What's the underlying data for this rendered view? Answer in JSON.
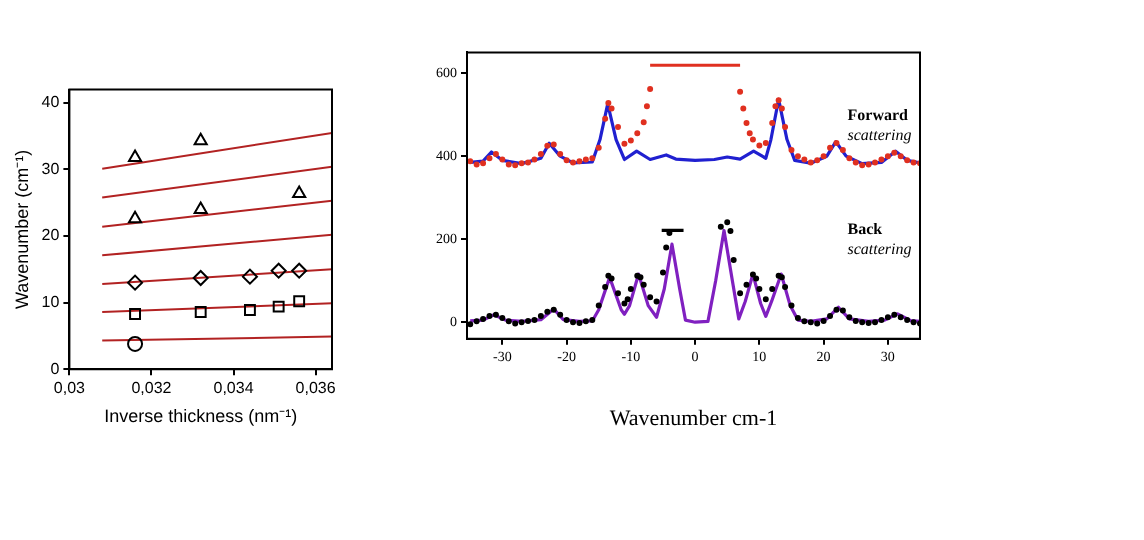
{
  "chart_data": [
    {
      "type": "scatter",
      "xlabel": "Inverse thickness (nm⁻¹)",
      "ylabel": "Wavenumber (cm⁻¹)",
      "xlim": [
        0.03,
        0.0364
      ],
      "xticks": [
        {
          "value": 0.03,
          "label": "0,03"
        },
        {
          "value": 0.032,
          "label": "0,032"
        },
        {
          "value": 0.034,
          "label": "0,034"
        },
        {
          "value": 0.036,
          "label": "0,036"
        }
      ],
      "ylim": [
        0,
        42
      ],
      "yticks": [
        0,
        10,
        20,
        30,
        40
      ],
      "series": [
        {
          "color": "#000000",
          "marker": "circle",
          "x": [
            0.0316
          ],
          "values": [
            3.8
          ]
        },
        {
          "color": "#000000",
          "marker": "square",
          "x": [
            0.0316,
            0.0332,
            0.0344,
            0.0351,
            0.0356
          ],
          "values": [
            8.3,
            8.6,
            8.9,
            9.4,
            10.2
          ]
        },
        {
          "color": "#000000",
          "marker": "diamond",
          "x": [
            0.0316,
            0.0332,
            0.0344,
            0.0351,
            0.0356
          ],
          "values": [
            13.0,
            13.7,
            13.9,
            14.8,
            14.8
          ]
        },
        {
          "color": "#000000",
          "marker": "triangle",
          "x": [
            0.0316,
            0.0332,
            0.0356
          ],
          "values": [
            22.6,
            24.0,
            26.4
          ]
        },
        {
          "color": "#000000",
          "marker": "triangle",
          "x": [
            0.0316,
            0.0332
          ],
          "values": [
            31.8,
            34.3
          ]
        },
        {
          "type": "line",
          "color": "#b22222",
          "x": [
            0.0308,
            0.0364
          ],
          "values": [
            4.3,
            4.9
          ]
        },
        {
          "type": "line",
          "color": "#b22222",
          "x": [
            0.0308,
            0.0364
          ],
          "values": [
            8.6,
            9.9
          ]
        },
        {
          "type": "line",
          "color": "#b22222",
          "x": [
            0.0308,
            0.0364
          ],
          "values": [
            12.8,
            15.0
          ]
        },
        {
          "type": "line",
          "color": "#b22222",
          "x": [
            0.0308,
            0.0364
          ],
          "values": [
            17.1,
            20.2
          ]
        },
        {
          "type": "line",
          "color": "#b22222",
          "x": [
            0.0308,
            0.0364
          ],
          "values": [
            21.4,
            25.3
          ]
        },
        {
          "type": "line",
          "color": "#b22222",
          "x": [
            0.0308,
            0.0364
          ],
          "values": [
            25.8,
            30.4
          ]
        },
        {
          "type": "line",
          "color": "#b22222",
          "x": [
            0.0308,
            0.0364
          ],
          "values": [
            30.1,
            35.5
          ]
        }
      ]
    },
    {
      "type": "line",
      "xlabel": "Wavenumber cm-1",
      "annotations": [
        "Forward scattering",
        "Back scattering"
      ],
      "xlim": [
        -35.5,
        35
      ],
      "xticks": [
        -30,
        -20,
        -10,
        0,
        10,
        20,
        30
      ],
      "ylim": [
        -40,
        650
      ],
      "yticks": [
        0,
        200,
        400,
        600
      ],
      "series": [
        {
          "type": "scatter",
          "color": "#e03020",
          "marker": "circle",
          "x": [
            -35,
            -34,
            -33,
            -32,
            -31,
            -30,
            -29,
            -28,
            -27,
            -26,
            -25,
            -24,
            -23,
            -22,
            -21,
            -20,
            -19,
            -18,
            -17,
            -16,
            -15,
            -14,
            -13.5,
            -13,
            -12,
            -11,
            -10,
            -9,
            -8,
            -7.5,
            -7,
            7,
            7.5,
            8,
            8.5,
            9,
            10,
            11,
            12,
            12.5,
            13,
            13.5,
            14,
            15,
            16,
            17,
            18,
            19,
            20,
            21,
            22,
            23,
            24,
            25,
            26,
            27,
            28,
            29,
            30,
            31,
            32,
            33,
            34,
            35
          ],
          "values": [
            388,
            380,
            383,
            395,
            405,
            392,
            380,
            378,
            383,
            385,
            392,
            405,
            425,
            428,
            405,
            390,
            385,
            388,
            392,
            395,
            420,
            490,
            528,
            515,
            470,
            430,
            438,
            455,
            482,
            520,
            562,
            555,
            515,
            480,
            455,
            440,
            426,
            432,
            480,
            520,
            535,
            515,
            470,
            415,
            400,
            392,
            385,
            390,
            400,
            420,
            432,
            415,
            395,
            385,
            378,
            380,
            385,
            392,
            400,
            408,
            400,
            390,
            385,
            383
          ]
        },
        {
          "color": "#2020d0",
          "x": [
            -35,
            -33,
            -31.7,
            -30,
            -27,
            -24,
            -22.7,
            -21,
            -19,
            -16,
            -14.8,
            -13.6,
            -12.3,
            -11,
            -9.1,
            -7,
            -4.5,
            -3,
            0,
            3,
            5,
            7,
            9.1,
            11,
            11.8,
            13,
            14.3,
            15.5,
            18,
            20.5,
            21.9,
            23.5,
            26,
            29,
            31.2,
            33,
            35
          ],
          "values": [
            385,
            388,
            410,
            390,
            382,
            395,
            431,
            400,
            384,
            386,
            440,
            526,
            440,
            392,
            412,
            392,
            403,
            393,
            390,
            392,
            398,
            393,
            412,
            395,
            440,
            537,
            440,
            390,
            383,
            400,
            435,
            400,
            382,
            385,
            412,
            390,
            384
          ]
        },
        {
          "color": "#e03020",
          "x": [
            -7,
            7
          ],
          "values": [
            619,
            619
          ]
        },
        {
          "type": "scatter",
          "color": "#000000",
          "marker": "circle",
          "x": [
            -35,
            -34,
            -33,
            -32,
            -31,
            -30,
            -29,
            -28,
            -27,
            -26,
            -25,
            -24,
            -23,
            -22,
            -21,
            -20,
            -19,
            -18,
            -17,
            -16,
            -15,
            -14,
            -13.5,
            -13,
            -12,
            -11,
            -10.5,
            -10,
            -9,
            -8.5,
            -8,
            -7,
            -6,
            -5,
            -4.5,
            -4,
            4,
            5,
            5.5,
            6,
            7,
            8,
            9,
            9.5,
            10,
            11,
            12,
            13,
            13.5,
            14,
            15,
            16,
            17,
            18,
            19,
            20,
            21,
            22,
            23,
            24,
            25,
            26,
            27,
            28,
            29,
            30,
            31,
            32,
            33,
            34,
            35
          ],
          "values": [
            -5,
            2,
            8,
            15,
            18,
            10,
            2,
            -3,
            0,
            3,
            5,
            15,
            25,
            30,
            18,
            5,
            0,
            -2,
            2,
            5,
            40,
            85,
            112,
            105,
            70,
            45,
            55,
            80,
            112,
            108,
            90,
            60,
            50,
            120,
            180,
            215,
            230,
            241,
            220,
            150,
            70,
            90,
            115,
            105,
            80,
            55,
            80,
            112,
            108,
            85,
            40,
            10,
            2,
            0,
            -3,
            3,
            15,
            30,
            28,
            12,
            3,
            0,
            -2,
            0,
            5,
            12,
            18,
            12,
            5,
            0,
            -3
          ]
        },
        {
          "color": "#8020c0",
          "x": [
            -35,
            -33,
            -31.3,
            -29.5,
            -27,
            -24,
            -22,
            -20.5,
            -18,
            -16,
            -15,
            -13.3,
            -11.5,
            -11,
            -10.2,
            -8.8,
            -7.3,
            -6,
            -4.8,
            -3.6,
            -2.4,
            -1.5,
            0,
            2,
            3.2,
            4.5,
            5.8,
            6.8,
            7.8,
            9,
            10.2,
            11,
            11.9,
            13.4,
            14.8,
            16,
            18,
            20.5,
            22.3,
            24,
            27,
            29.5,
            31.5,
            33.5,
            35
          ],
          "values": [
            3,
            5,
            18,
            5,
            2,
            6,
            32,
            6,
            2,
            3,
            30,
            108,
            30,
            19,
            40,
            116,
            40,
            12,
            80,
            188,
            80,
            5,
            0,
            2,
            100,
            221,
            100,
            8,
            50,
            116,
            45,
            14,
            50,
            116,
            40,
            5,
            2,
            8,
            36,
            8,
            2,
            5,
            20,
            4,
            2
          ]
        },
        {
          "color": "#000000",
          "x": [
            -5.2,
            -1.8
          ],
          "values": [
            221,
            221
          ]
        }
      ]
    }
  ]
}
